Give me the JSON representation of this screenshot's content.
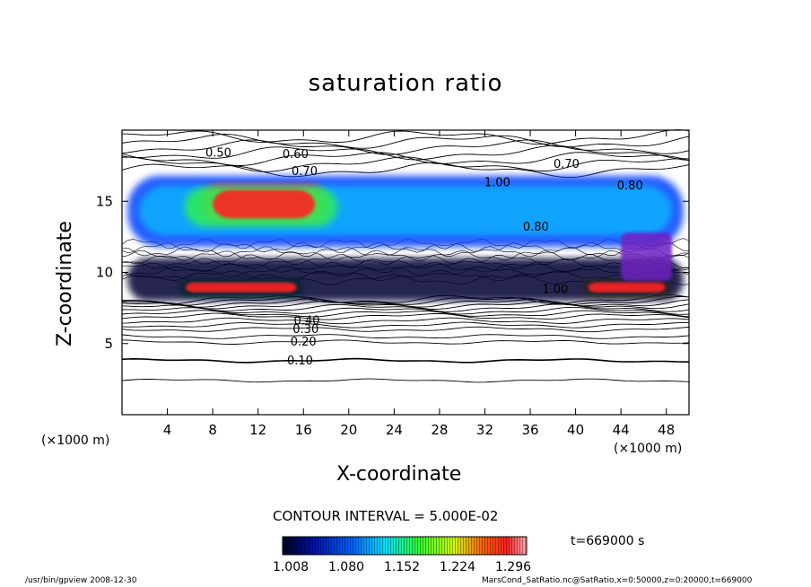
{
  "chart_data": {
    "type": "heatmap",
    "title": "saturation ratio",
    "xlabel": "X-coordinate",
    "ylabel": "Z-coordinate",
    "x_unit_label": "(×1000 m)",
    "z_unit_label": "(×1000 m)",
    "xlim": [
      0,
      50
    ],
    "ylim": [
      0,
      20
    ],
    "x_ticks": [
      4,
      8,
      12,
      16,
      20,
      24,
      28,
      32,
      36,
      40,
      44,
      48
    ],
    "y_ticks": [
      5,
      10,
      15
    ],
    "contour_interval_text": "CONTOUR INTERVAL = 5.000E-02",
    "contour_labels": [
      {
        "text": "0.50",
        "x": 8.5,
        "z": 18.4
      },
      {
        "text": "0.60",
        "x": 15.3,
        "z": 18.3
      },
      {
        "text": "0.70",
        "x": 16.1,
        "z": 17.1
      },
      {
        "text": "0.70",
        "x": 39.2,
        "z": 17.6
      },
      {
        "text": "0.80",
        "x": 44.8,
        "z": 16.1
      },
      {
        "text": "1.00",
        "x": 33.1,
        "z": 16.3
      },
      {
        "text": "0.80",
        "x": 36.5,
        "z": 13.2
      },
      {
        "text": "1.00",
        "x": 38.2,
        "z": 8.8
      },
      {
        "text": "0.10",
        "x": 15.7,
        "z": 3.8
      },
      {
        "text": "0.20",
        "x": 16.0,
        "z": 5.1
      },
      {
        "text": "0.30",
        "x": 16.2,
        "z": 6.0
      },
      {
        "text": "0.40",
        "x": 16.3,
        "z": 6.6
      }
    ],
    "color_levels": [
      1.008,
      1.08,
      1.152,
      1.224,
      1.296
    ],
    "colorbar_labels": [
      "1.008",
      "1.080",
      "1.152",
      "1.224",
      "1.296"
    ],
    "colors": {
      "low": "#000033",
      "blue": "#0040ff",
      "cyan": "#00e0ff",
      "green": "#30ff30",
      "yellow": "#ffff00",
      "red": "#ff2020",
      "high": "#ffaaaa"
    },
    "regions": [
      {
        "x": [
          0.5,
          49.5
        ],
        "z": [
          11.8,
          16.8
        ],
        "value": 1.1
      },
      {
        "x": [
          7.0,
          18.0
        ],
        "z": [
          13.5,
          16.2
        ],
        "value": 1.28
      },
      {
        "x": [
          5.0,
          16.0
        ],
        "z": [
          8.3,
          9.6
        ],
        "value": 1.22
      },
      {
        "x": [
          40.5,
          48.5
        ],
        "z": [
          8.3,
          9.6
        ],
        "value": 1.24
      },
      {
        "x": [
          0.5,
          49.5
        ],
        "z": [
          8.0,
          11.0
        ],
        "value": 1.06
      }
    ]
  },
  "time_label": "t=669000 s",
  "footer": {
    "left": "/usr/bin/gpview   2008-12-30",
    "right": "MarsCond_SatRatio.nc@SatRatio,x=0:50000,z=0:20000,t=669000"
  }
}
